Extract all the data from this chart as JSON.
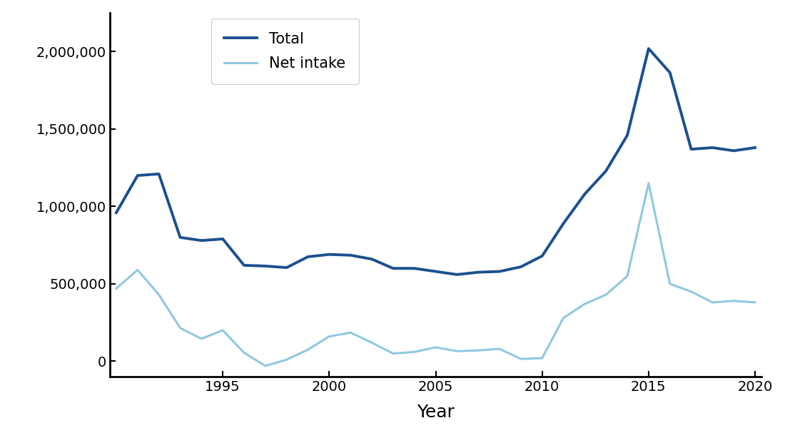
{
  "years": [
    1990,
    1991,
    1992,
    1993,
    1994,
    1995,
    1996,
    1997,
    1998,
    1999,
    2000,
    2001,
    2002,
    2003,
    2004,
    2005,
    2006,
    2007,
    2008,
    2009,
    2010,
    2011,
    2012,
    2013,
    2014,
    2015,
    2016,
    2017,
    2018,
    2019,
    2020
  ],
  "total": [
    960000,
    1200000,
    1210000,
    800000,
    780000,
    790000,
    620000,
    615000,
    605000,
    675000,
    690000,
    685000,
    660000,
    600000,
    600000,
    580000,
    560000,
    575000,
    580000,
    610000,
    680000,
    890000,
    1080000,
    1230000,
    1460000,
    2020000,
    1865000,
    1370000,
    1380000,
    1360000,
    1380000
  ],
  "net_intake": [
    470000,
    590000,
    430000,
    215000,
    145000,
    200000,
    55000,
    -30000,
    10000,
    75000,
    160000,
    185000,
    120000,
    50000,
    60000,
    90000,
    65000,
    70000,
    80000,
    15000,
    20000,
    280000,
    370000,
    430000,
    550000,
    1150000,
    500000,
    450000,
    380000,
    390000,
    380000
  ],
  "total_color": "#1a5090",
  "net_intake_color": "#90c8e0",
  "total_linewidth": 2.8,
  "net_intake_linewidth": 2.2,
  "xlabel": "Year",
  "ylabel": "",
  "title": "",
  "xlim_left": 1990,
  "xlim_right": 2020,
  "ylim": [
    -100000,
    2250000
  ],
  "yticks": [
    0,
    500000,
    1000000,
    1500000,
    2000000
  ],
  "xticks": [
    1995,
    2000,
    2005,
    2010,
    2015,
    2020
  ],
  "legend_labels": [
    "Total",
    "Net intake"
  ],
  "background_color": "#ffffff",
  "figure_facecolor": "#ffffff",
  "tick_fontsize": 14,
  "xlabel_fontsize": 18,
  "legend_fontsize": 15
}
